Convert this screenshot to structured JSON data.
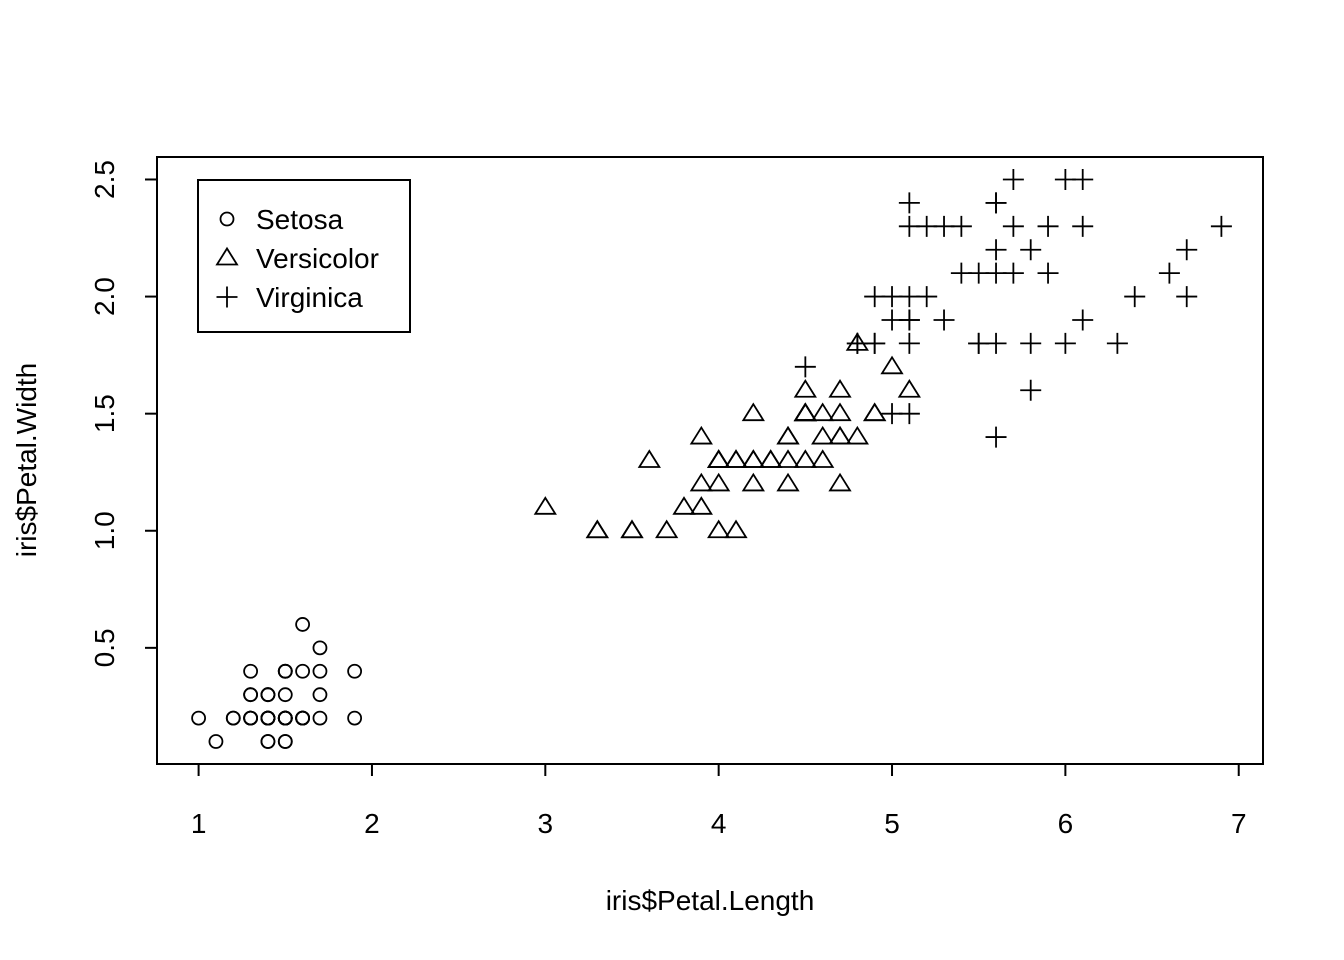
{
  "chart_data": {
    "type": "scatter",
    "xlabel": "iris$Petal.Length",
    "ylabel": "iris$Petal.Width",
    "xlim": [
      0.76,
      7.14
    ],
    "ylim": [
      0.004,
      2.596
    ],
    "xticks": [
      1,
      2,
      3,
      4,
      5,
      6,
      7
    ],
    "yticks": [
      0.5,
      1.0,
      1.5,
      2.0,
      2.5
    ],
    "ytick_labels": [
      "0.5",
      "1.0",
      "1.5",
      "2.0",
      "2.5"
    ],
    "grid": false,
    "legend_position": "top-left",
    "series": [
      {
        "name": "Setosa",
        "marker": "circle",
        "points": [
          [
            1.4,
            0.2
          ],
          [
            1.4,
            0.2
          ],
          [
            1.3,
            0.2
          ],
          [
            1.5,
            0.2
          ],
          [
            1.4,
            0.2
          ],
          [
            1.7,
            0.4
          ],
          [
            1.4,
            0.3
          ],
          [
            1.5,
            0.2
          ],
          [
            1.4,
            0.2
          ],
          [
            1.5,
            0.1
          ],
          [
            1.5,
            0.2
          ],
          [
            1.6,
            0.2
          ],
          [
            1.4,
            0.1
          ],
          [
            1.1,
            0.1
          ],
          [
            1.2,
            0.2
          ],
          [
            1.5,
            0.4
          ],
          [
            1.3,
            0.4
          ],
          [
            1.4,
            0.3
          ],
          [
            1.7,
            0.3
          ],
          [
            1.5,
            0.3
          ],
          [
            1.7,
            0.2
          ],
          [
            1.5,
            0.4
          ],
          [
            1.0,
            0.2
          ],
          [
            1.7,
            0.5
          ],
          [
            1.9,
            0.2
          ],
          [
            1.6,
            0.2
          ],
          [
            1.6,
            0.4
          ],
          [
            1.5,
            0.2
          ],
          [
            1.4,
            0.2
          ],
          [
            1.6,
            0.2
          ],
          [
            1.6,
            0.2
          ],
          [
            1.5,
            0.4
          ],
          [
            1.5,
            0.1
          ],
          [
            1.4,
            0.2
          ],
          [
            1.5,
            0.2
          ],
          [
            1.2,
            0.2
          ],
          [
            1.3,
            0.2
          ],
          [
            1.4,
            0.1
          ],
          [
            1.3,
            0.2
          ],
          [
            1.5,
            0.2
          ],
          [
            1.3,
            0.3
          ],
          [
            1.3,
            0.3
          ],
          [
            1.3,
            0.2
          ],
          [
            1.6,
            0.6
          ],
          [
            1.9,
            0.4
          ],
          [
            1.4,
            0.3
          ],
          [
            1.6,
            0.2
          ],
          [
            1.4,
            0.2
          ],
          [
            1.5,
            0.2
          ],
          [
            1.4,
            0.2
          ]
        ]
      },
      {
        "name": "Versicolor",
        "marker": "triangle",
        "points": [
          [
            4.7,
            1.4
          ],
          [
            4.5,
            1.5
          ],
          [
            4.9,
            1.5
          ],
          [
            4.0,
            1.3
          ],
          [
            4.6,
            1.5
          ],
          [
            4.5,
            1.3
          ],
          [
            4.7,
            1.6
          ],
          [
            3.3,
            1.0
          ],
          [
            4.6,
            1.3
          ],
          [
            3.9,
            1.4
          ],
          [
            3.5,
            1.0
          ],
          [
            4.2,
            1.5
          ],
          [
            4.0,
            1.0
          ],
          [
            4.7,
            1.4
          ],
          [
            3.6,
            1.3
          ],
          [
            4.4,
            1.4
          ],
          [
            4.5,
            1.5
          ],
          [
            4.1,
            1.0
          ],
          [
            4.5,
            1.5
          ],
          [
            3.9,
            1.1
          ],
          [
            4.8,
            1.8
          ],
          [
            4.0,
            1.3
          ],
          [
            4.9,
            1.5
          ],
          [
            4.7,
            1.2
          ],
          [
            4.3,
            1.3
          ],
          [
            4.4,
            1.4
          ],
          [
            4.8,
            1.4
          ],
          [
            5.0,
            1.7
          ],
          [
            4.5,
            1.5
          ],
          [
            3.5,
            1.0
          ],
          [
            3.8,
            1.1
          ],
          [
            3.7,
            1.0
          ],
          [
            3.9,
            1.2
          ],
          [
            5.1,
            1.6
          ],
          [
            4.5,
            1.5
          ],
          [
            4.5,
            1.6
          ],
          [
            4.7,
            1.5
          ],
          [
            4.4,
            1.3
          ],
          [
            4.1,
            1.3
          ],
          [
            4.0,
            1.3
          ],
          [
            4.4,
            1.2
          ],
          [
            4.6,
            1.4
          ],
          [
            4.0,
            1.2
          ],
          [
            3.3,
            1.0
          ],
          [
            4.2,
            1.3
          ],
          [
            4.2,
            1.2
          ],
          [
            4.2,
            1.3
          ],
          [
            4.3,
            1.3
          ],
          [
            3.0,
            1.1
          ],
          [
            4.1,
            1.3
          ]
        ]
      },
      {
        "name": "Virginica",
        "marker": "plus",
        "points": [
          [
            6.0,
            2.5
          ],
          [
            5.1,
            1.9
          ],
          [
            5.9,
            2.1
          ],
          [
            5.6,
            1.8
          ],
          [
            5.8,
            2.2
          ],
          [
            6.6,
            2.1
          ],
          [
            4.5,
            1.7
          ],
          [
            6.3,
            1.8
          ],
          [
            5.8,
            1.8
          ],
          [
            6.1,
            2.5
          ],
          [
            5.1,
            2.0
          ],
          [
            5.3,
            1.9
          ],
          [
            5.5,
            2.1
          ],
          [
            5.0,
            2.0
          ],
          [
            5.1,
            2.4
          ],
          [
            5.3,
            2.3
          ],
          [
            5.5,
            1.8
          ],
          [
            6.7,
            2.2
          ],
          [
            6.9,
            2.3
          ],
          [
            5.0,
            1.5
          ],
          [
            5.7,
            2.3
          ],
          [
            4.9,
            2.0
          ],
          [
            6.7,
            2.0
          ],
          [
            4.9,
            1.8
          ],
          [
            5.7,
            2.1
          ],
          [
            6.0,
            1.8
          ],
          [
            4.8,
            1.8
          ],
          [
            4.9,
            1.8
          ],
          [
            5.6,
            2.1
          ],
          [
            5.8,
            1.6
          ],
          [
            6.1,
            1.9
          ],
          [
            6.4,
            2.0
          ],
          [
            5.6,
            2.2
          ],
          [
            5.1,
            1.5
          ],
          [
            5.6,
            1.4
          ],
          [
            6.1,
            2.3
          ],
          [
            5.6,
            2.4
          ],
          [
            5.5,
            1.8
          ],
          [
            4.8,
            1.8
          ],
          [
            5.4,
            2.1
          ],
          [
            5.6,
            2.4
          ],
          [
            5.1,
            2.3
          ],
          [
            5.1,
            1.9
          ],
          [
            5.9,
            2.3
          ],
          [
            5.7,
            2.5
          ],
          [
            5.2,
            2.3
          ],
          [
            5.0,
            1.9
          ],
          [
            5.2,
            2.0
          ],
          [
            5.4,
            2.3
          ],
          [
            5.1,
            1.8
          ]
        ]
      }
    ]
  }
}
